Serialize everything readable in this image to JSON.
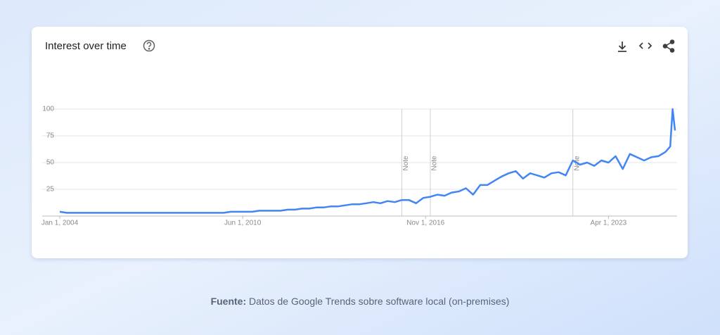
{
  "chart_data": {
    "type": "line",
    "title": "Interest over time",
    "x": [
      "2004-01",
      "2004-04",
      "2004-07",
      "2004-10",
      "2005-01",
      "2005-04",
      "2005-07",
      "2005-10",
      "2006-01",
      "2006-04",
      "2006-07",
      "2006-10",
      "2007-01",
      "2007-04",
      "2007-07",
      "2007-10",
      "2008-01",
      "2008-04",
      "2008-07",
      "2008-10",
      "2009-01",
      "2009-04",
      "2009-07",
      "2009-10",
      "2010-01",
      "2010-04",
      "2010-07",
      "2010-10",
      "2011-01",
      "2011-04",
      "2011-07",
      "2011-10",
      "2012-01",
      "2012-04",
      "2012-07",
      "2012-10",
      "2013-01",
      "2013-04",
      "2013-07",
      "2013-10",
      "2014-01",
      "2014-04",
      "2014-07",
      "2014-10",
      "2015-01",
      "2015-04",
      "2015-07",
      "2015-10",
      "2016-01",
      "2016-04",
      "2016-07",
      "2016-10",
      "2017-01",
      "2017-04",
      "2017-07",
      "2017-10",
      "2018-01",
      "2018-04",
      "2018-07",
      "2018-10",
      "2019-01",
      "2019-04",
      "2019-07",
      "2019-10",
      "2020-01",
      "2020-04",
      "2020-07",
      "2020-10",
      "2021-01",
      "2021-04",
      "2021-07",
      "2021-10",
      "2022-01",
      "2022-04",
      "2022-07",
      "2022-10",
      "2023-01",
      "2023-04",
      "2023-07",
      "2023-10",
      "2024-01",
      "2024-04",
      "2024-07",
      "2024-10",
      "2025-01",
      "2025-04",
      "2025-06",
      "2025-07",
      "2025-08"
    ],
    "series": [
      {
        "color": "#4285f4",
        "values": [
          4,
          3,
          3,
          3,
          3,
          3,
          3,
          3,
          3,
          3,
          3,
          3,
          3,
          3,
          3,
          3,
          3,
          3,
          3,
          3,
          3,
          3,
          3,
          3,
          4,
          4,
          4,
          4,
          5,
          5,
          5,
          5,
          6,
          6,
          7,
          7,
          8,
          8,
          9,
          9,
          10,
          11,
          11,
          12,
          13,
          12,
          14,
          13,
          15,
          15,
          12,
          17,
          18,
          20,
          19,
          22,
          23,
          26,
          20,
          29,
          29,
          33,
          37,
          40,
          42,
          35,
          40,
          38,
          36,
          40,
          41,
          38,
          52,
          48,
          50,
          47,
          52,
          50,
          56,
          44,
          58,
          55,
          52,
          55,
          56,
          60,
          65,
          100,
          80
        ]
      }
    ],
    "xlim": [
      "2004-01",
      "2025-08"
    ],
    "xticks": [
      {
        "value": "2004-01",
        "label": "Jan 1, 2004"
      },
      {
        "value": "2010-06",
        "label": "Jun 1, 2010"
      },
      {
        "value": "2016-11",
        "label": "Nov 1, 2016"
      },
      {
        "value": "2023-04",
        "label": "Apr 1, 2023"
      }
    ],
    "ylim": [
      0,
      100
    ],
    "yticks": [
      25,
      50,
      75,
      100
    ],
    "grid": true,
    "annotations": [
      {
        "x": "2016-01",
        "text": "Note"
      },
      {
        "x": "2017-01",
        "text": "Note"
      },
      {
        "x": "2022-01",
        "text": "Note"
      }
    ]
  },
  "caption": {
    "label": "Fuente:",
    "text": "Datos de Google Trends sobre software local (on-premises)"
  }
}
